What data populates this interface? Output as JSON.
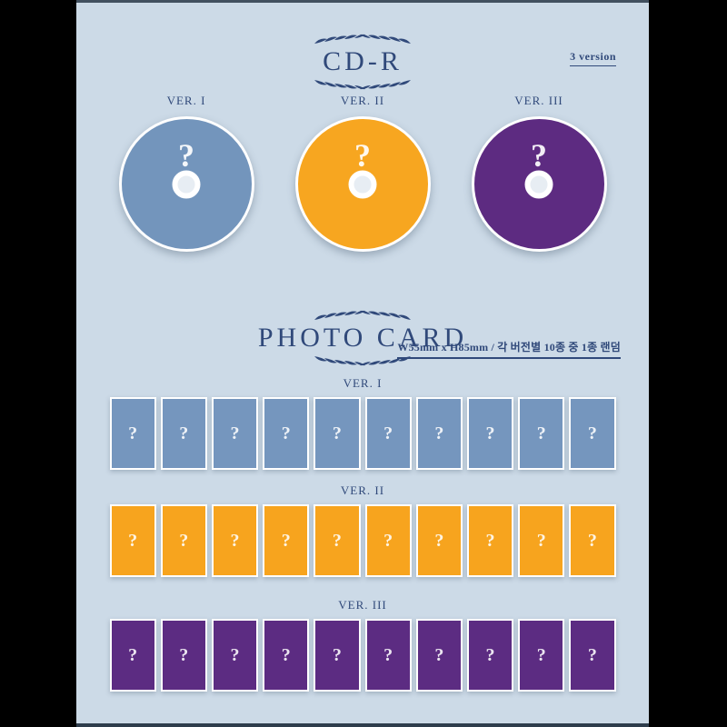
{
  "page": {
    "background_color": "#ccdae7",
    "frame_color": "#000000",
    "accent_color": "#30497a"
  },
  "cd_section": {
    "title": "CD-R",
    "version_note": "3 version",
    "items": [
      {
        "label": "VER. I",
        "color": "#7395bc",
        "mark": "?"
      },
      {
        "label": "VER. II",
        "color": "#f7a620",
        "mark": "?"
      },
      {
        "label": "VER. III",
        "color": "#5d2b81",
        "mark": "?"
      }
    ]
  },
  "photocard_section": {
    "title": "PHOTO CARD",
    "size_note": "W55mm x H85mm / 각 버전별 10종 중 1종 랜덤",
    "rows": [
      {
        "label": "VER. I",
        "color": "#7596be",
        "count": 10,
        "mark": "?"
      },
      {
        "label": "VER. II",
        "color": "#f7a41e",
        "count": 10,
        "mark": "?"
      },
      {
        "label": "VER. III",
        "color": "#5c2c82",
        "count": 10,
        "mark": "?"
      }
    ]
  }
}
